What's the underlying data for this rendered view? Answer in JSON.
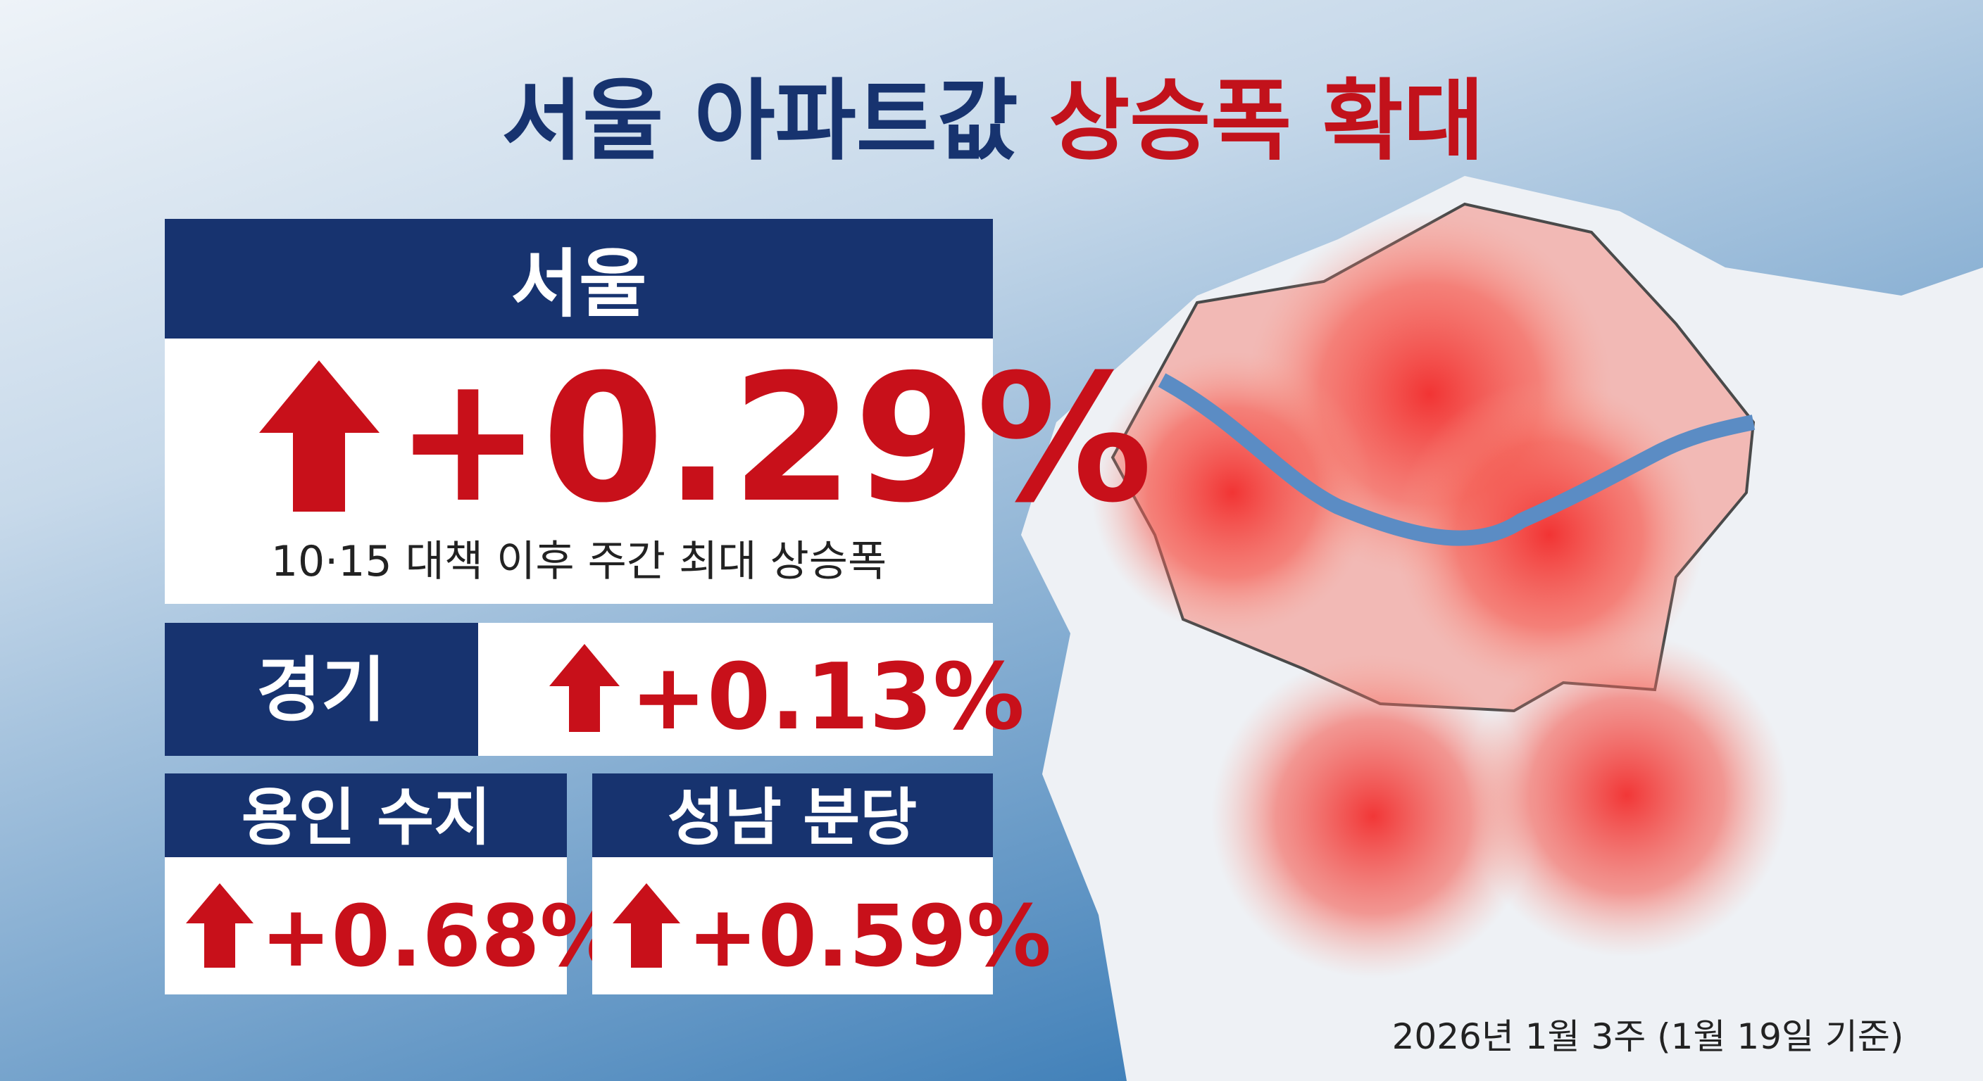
{
  "header": {
    "title_blue": "서울 아파트값",
    "title_red": "상승폭 확대"
  },
  "cards": [
    {
      "label": "서울",
      "value": "+0.29%",
      "note": "10·15 대책 이후 주간 최대 상승폭"
    },
    {
      "label": "경기",
      "value": "+0.13%"
    },
    {
      "label": "용인 수지",
      "value": "+0.68%"
    },
    {
      "label": "성남 분당",
      "value": "+0.59%"
    }
  ],
  "footer": {
    "date": "2026년 1월 3주 (1월 19일 기준)"
  }
}
